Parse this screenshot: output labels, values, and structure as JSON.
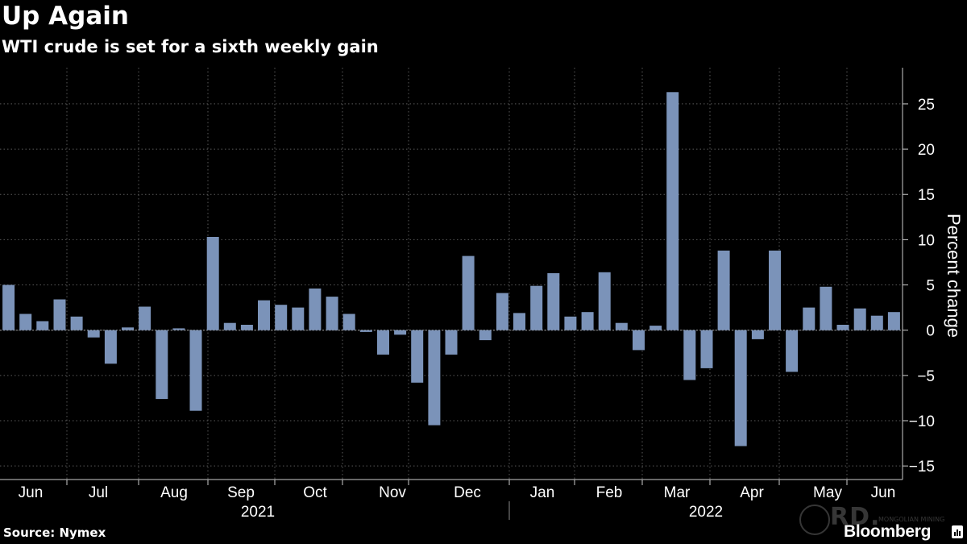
{
  "chart_data": {
    "type": "bar",
    "title": "Up Again",
    "subtitle": "WTI crude is set for a sixth weekly gain",
    "ylabel": "Percent change",
    "source": "Source: Nymex",
    "brand": "Bloomberg",
    "watermark": {
      "letters": "RD.",
      "caption": "MONGOLIAN MINING"
    },
    "ylim": [
      -16.5,
      29
    ],
    "yticks": [
      -15,
      -10,
      -5,
      0,
      5,
      10,
      15,
      20,
      25
    ],
    "grid": true,
    "bar_color": "#7b93b9",
    "month_labels": [
      "Jun",
      "Jul",
      "Aug",
      "Sep",
      "Oct",
      "Nov",
      "Dec",
      "Jan",
      "Feb",
      "Mar",
      "Apr",
      "May",
      "Jun"
    ],
    "year_labels": [
      "2021",
      "2022"
    ],
    "values": [
      5.0,
      1.8,
      1.0,
      3.4,
      1.5,
      -0.8,
      -3.7,
      0.3,
      2.6,
      -7.6,
      0.2,
      -8.9,
      10.3,
      0.8,
      0.6,
      3.3,
      2.8,
      2.5,
      4.6,
      3.7,
      1.8,
      -0.2,
      -2.7,
      -0.5,
      -5.8,
      -10.5,
      -2.7,
      8.2,
      -1.1,
      4.1,
      1.9,
      4.9,
      6.3,
      1.5,
      2.0,
      6.4,
      0.8,
      -2.2,
      0.5,
      26.3,
      -5.5,
      -4.2,
      8.8,
      -12.8,
      -1.0,
      8.8,
      -4.6,
      2.5,
      4.8,
      0.6,
      2.4,
      1.6,
      2.0
    ]
  }
}
